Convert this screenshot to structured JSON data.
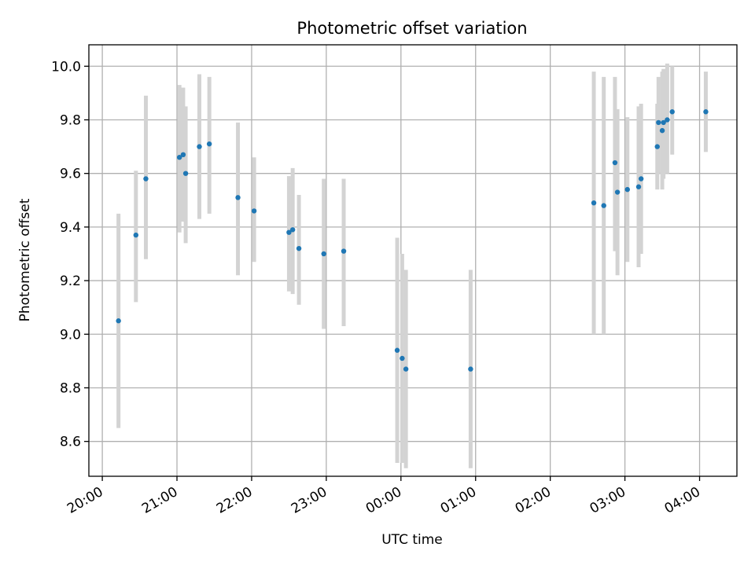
{
  "chart_data": {
    "type": "scatter",
    "title": "Photometric offset variation",
    "xlabel": "UTC time",
    "ylabel": "Photometric offset",
    "xlim": [
      -0.18,
      8.5
    ],
    "ylim": [
      8.47,
      10.08
    ],
    "x_unit": "hours after 20:00 UTC",
    "x_ticks": [
      {
        "label": "20:00",
        "value": 0
      },
      {
        "label": "21:00",
        "value": 1
      },
      {
        "label": "22:00",
        "value": 2
      },
      {
        "label": "23:00",
        "value": 3
      },
      {
        "label": "00:00",
        "value": 4
      },
      {
        "label": "01:00",
        "value": 5
      },
      {
        "label": "02:00",
        "value": 6
      },
      {
        "label": "03:00",
        "value": 7
      },
      {
        "label": "04:00",
        "value": 8
      }
    ],
    "y_ticks": [
      {
        "label": "8.6",
        "value": 8.6
      },
      {
        "label": "8.8",
        "value": 8.8
      },
      {
        "label": "9.0",
        "value": 9.0
      },
      {
        "label": "9.2",
        "value": 9.2
      },
      {
        "label": "9.4",
        "value": 9.4
      },
      {
        "label": "9.6",
        "value": 9.6
      },
      {
        "label": "9.8",
        "value": 9.8
      },
      {
        "label": "10.0",
        "value": 10.0
      }
    ],
    "grid": true,
    "colors": {
      "point": "#1f77b4",
      "errorbar": "#d3d3d3",
      "grid": "#b0b0b0"
    },
    "points": [
      {
        "t": "20:13",
        "y": 9.05,
        "lo": 8.65,
        "hi": 9.45
      },
      {
        "t": "20:27",
        "y": 9.37,
        "lo": 9.12,
        "hi": 9.61
      },
      {
        "t": "20:35",
        "y": 9.58,
        "lo": 9.28,
        "hi": 9.89
      },
      {
        "t": "21:02",
        "y": 9.66,
        "lo": 9.38,
        "hi": 9.93
      },
      {
        "t": "21:05",
        "y": 9.67,
        "lo": 9.42,
        "hi": 9.92
      },
      {
        "t": "21:07",
        "y": 9.6,
        "lo": 9.34,
        "hi": 9.85
      },
      {
        "t": "21:18",
        "y": 9.7,
        "lo": 9.43,
        "hi": 9.97
      },
      {
        "t": "21:26",
        "y": 9.71,
        "lo": 9.45,
        "hi": 9.96
      },
      {
        "t": "21:49",
        "y": 9.51,
        "lo": 9.22,
        "hi": 9.79
      },
      {
        "t": "22:02",
        "y": 9.46,
        "lo": 9.27,
        "hi": 9.66
      },
      {
        "t": "22:30",
        "y": 9.38,
        "lo": 9.16,
        "hi": 9.59
      },
      {
        "t": "22:33",
        "y": 9.39,
        "lo": 9.15,
        "hi": 9.62
      },
      {
        "t": "22:38",
        "y": 9.32,
        "lo": 9.11,
        "hi": 9.52
      },
      {
        "t": "22:58",
        "y": 9.3,
        "lo": 9.02,
        "hi": 9.58
      },
      {
        "t": "23:14",
        "y": 9.31,
        "lo": 9.03,
        "hi": 9.58
      },
      {
        "t": "23:57",
        "y": 8.94,
        "lo": 8.52,
        "hi": 9.36
      },
      {
        "t": "00:01",
        "y": 8.91,
        "lo": 8.52,
        "hi": 9.3
      },
      {
        "t": "00:04",
        "y": 8.87,
        "lo": 8.5,
        "hi": 9.24
      },
      {
        "t": "00:56",
        "y": 8.87,
        "lo": 8.5,
        "hi": 9.24
      },
      {
        "t": "02:35",
        "y": 9.49,
        "lo": 9.0,
        "hi": 9.98
      },
      {
        "t": "02:43",
        "y": 9.48,
        "lo": 9.0,
        "hi": 9.96
      },
      {
        "t": "02:52",
        "y": 9.64,
        "lo": 9.31,
        "hi": 9.96
      },
      {
        "t": "02:54",
        "y": 9.53,
        "lo": 9.22,
        "hi": 9.84
      },
      {
        "t": "03:02",
        "y": 9.54,
        "lo": 9.27,
        "hi": 9.81
      },
      {
        "t": "03:11",
        "y": 9.55,
        "lo": 9.25,
        "hi": 9.85
      },
      {
        "t": "03:13",
        "y": 9.58,
        "lo": 9.3,
        "hi": 9.86
      },
      {
        "t": "03:26",
        "y": 9.7,
        "lo": 9.54,
        "hi": 9.86
      },
      {
        "t": "03:27",
        "y": 9.79,
        "lo": 9.6,
        "hi": 9.96
      },
      {
        "t": "03:30",
        "y": 9.76,
        "lo": 9.54,
        "hi": 9.98
      },
      {
        "t": "03:31",
        "y": 9.79,
        "lo": 9.58,
        "hi": 9.99
      },
      {
        "t": "03:34",
        "y": 9.8,
        "lo": 9.6,
        "hi": 10.01
      },
      {
        "t": "03:38",
        "y": 9.83,
        "lo": 9.67,
        "hi": 10.0
      },
      {
        "t": "04:05",
        "y": 9.83,
        "lo": 9.68,
        "hi": 9.98
      }
    ]
  }
}
